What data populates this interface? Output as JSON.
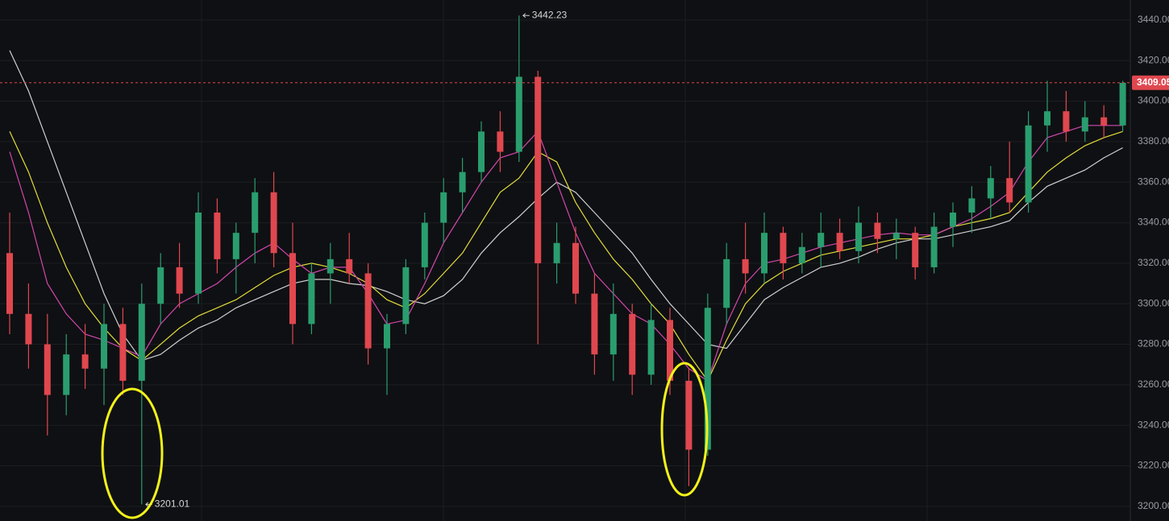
{
  "chart_data": {
    "type": "candlestick",
    "ylim": [
      3192.8,
      3449.9
    ],
    "yticks": [
      {
        "value": 3200,
        "label": "3200.00"
      },
      {
        "value": 3220,
        "label": "3220.00"
      },
      {
        "value": 3240,
        "label": "3240.00"
      },
      {
        "value": 3260,
        "label": "3260.00"
      },
      {
        "value": 3280,
        "label": "3280.00"
      },
      {
        "value": 3300,
        "label": "3300.00"
      },
      {
        "value": 3320,
        "label": "3320.00"
      },
      {
        "value": 3340,
        "label": "3340.00"
      },
      {
        "value": 3360,
        "label": "3360.00"
      },
      {
        "value": 3380,
        "label": "3380.00"
      },
      {
        "value": 3400,
        "label": "3400.00"
      },
      {
        "value": 3420,
        "label": "3420.00"
      },
      {
        "value": 3440,
        "label": "3440.00"
      }
    ],
    "grid": true,
    "up_color": "#2a9d6e",
    "down_color": "#e0474f",
    "open": [
      3325,
      3295,
      3280,
      3255,
      3275,
      3268,
      3290,
      3262,
      3300,
      3318,
      3305,
      3345,
      3322,
      3335,
      3355,
      3325,
      3290,
      3315,
      3322,
      3315,
      3278,
      3290,
      3318,
      3340,
      3355,
      3365,
      3385,
      3375,
      3412,
      3320,
      3330,
      3305,
      3275,
      3295,
      3265,
      3292,
      3262,
      3228,
      3298,
      3322,
      3315,
      3335,
      3320,
      3328,
      3335,
      3326,
      3340,
      3332,
      3335,
      3318,
      3338,
      3345,
      3352,
      3362,
      3350,
      3388,
      3395,
      3385,
      3392,
      3388
    ],
    "high": [
      3345,
      3310,
      3295,
      3285,
      3290,
      3300,
      3298,
      3310,
      3325,
      3330,
      3355,
      3352,
      3340,
      3362,
      3365,
      3340,
      3320,
      3330,
      3335,
      3320,
      3295,
      3322,
      3345,
      3362,
      3372,
      3390,
      3395,
      3442.23,
      3415,
      3340,
      3338,
      3315,
      3310,
      3300,
      3300,
      3298,
      3268,
      3305,
      3330,
      3340,
      3345,
      3338,
      3335,
      3345,
      3342,
      3348,
      3345,
      3342,
      3338,
      3345,
      3350,
      3358,
      3368,
      3380,
      3395,
      3410,
      3405,
      3400,
      3398,
      3410
    ],
    "low": [
      3285,
      3268,
      3235,
      3245,
      3258,
      3250,
      3255,
      3201.01,
      3290,
      3298,
      3300,
      3315,
      3305,
      3320,
      3318,
      3280,
      3285,
      3300,
      3310,
      3270,
      3255,
      3285,
      3312,
      3330,
      3345,
      3360,
      3365,
      3370,
      3280,
      3310,
      3300,
      3265,
      3262,
      3255,
      3260,
      3255,
      3210,
      3225,
      3290,
      3305,
      3310,
      3312,
      3315,
      3318,
      3322,
      3320,
      3325,
      3322,
      3312,
      3315,
      3328,
      3335,
      3342,
      3345,
      3345,
      3375,
      3380,
      3380,
      3382,
      3385
    ],
    "close": [
      3295,
      3280,
      3255,
      3275,
      3268,
      3290,
      3262,
      3300,
      3318,
      3305,
      3345,
      3322,
      3335,
      3355,
      3325,
      3290,
      3315,
      3322,
      3315,
      3278,
      3290,
      3318,
      3340,
      3355,
      3365,
      3385,
      3375,
      3412,
      3320,
      3330,
      3305,
      3275,
      3295,
      3265,
      3292,
      3262,
      3228,
      3298,
      3322,
      3315,
      3335,
      3320,
      3328,
      3335,
      3326,
      3340,
      3332,
      3335,
      3318,
      3338,
      3345,
      3352,
      3362,
      3350,
      3388,
      3395,
      3385,
      3392,
      3388,
      3409.05
    ],
    "lines": [
      {
        "color": "#d0d0d0",
        "values": [
          3425,
          3405,
          3380,
          3355,
          3330,
          3305,
          3285,
          3272,
          3275,
          3282,
          3288,
          3292,
          3298,
          3302,
          3306,
          3310,
          3312,
          3312,
          3310,
          3309,
          3306,
          3302,
          3300,
          3304,
          3312,
          3325,
          3335,
          3343,
          3352,
          3360,
          3355,
          3345,
          3335,
          3325,
          3312,
          3300,
          3290,
          3280,
          3278,
          3290,
          3302,
          3308,
          3313,
          3318,
          3320,
          3323,
          3327,
          3330,
          3332,
          3332,
          3334,
          3336,
          3338,
          3341,
          3350,
          3358,
          3362,
          3366,
          3372,
          3377
        ]
      },
      {
        "color": "#e3dd3a",
        "values": [
          3385,
          3365,
          3340,
          3318,
          3300,
          3288,
          3278,
          3272,
          3280,
          3288,
          3294,
          3298,
          3302,
          3308,
          3314,
          3318,
          3320,
          3318,
          3315,
          3310,
          3302,
          3298,
          3305,
          3315,
          3325,
          3340,
          3355,
          3362,
          3375,
          3370,
          3350,
          3335,
          3322,
          3312,
          3300,
          3290,
          3275,
          3262,
          3282,
          3300,
          3310,
          3316,
          3320,
          3324,
          3326,
          3328,
          3330,
          3332,
          3332,
          3334,
          3338,
          3340,
          3342,
          3345,
          3355,
          3365,
          3372,
          3378,
          3382,
          3385
        ]
      },
      {
        "color": "#d347ad",
        "values": [
          3375,
          3345,
          3310,
          3295,
          3285,
          3282,
          3278,
          3274,
          3290,
          3300,
          3305,
          3310,
          3318,
          3325,
          3330,
          3322,
          3315,
          3318,
          3318,
          3305,
          3290,
          3292,
          3310,
          3330,
          3345,
          3360,
          3372,
          3375,
          3385,
          3360,
          3335,
          3315,
          3305,
          3295,
          3290,
          3280,
          3268,
          3262,
          3290,
          3310,
          3320,
          3322,
          3325,
          3328,
          3330,
          3332,
          3334,
          3335,
          3334,
          3334,
          3338,
          3342,
          3348,
          3355,
          3370,
          3382,
          3385,
          3388,
          3388,
          3388
        ]
      }
    ],
    "current_price": 3409.05,
    "annotations": [
      {
        "index": 27,
        "value": 3442.23
      },
      {
        "index": 7,
        "value": 3201.01
      }
    ]
  }
}
